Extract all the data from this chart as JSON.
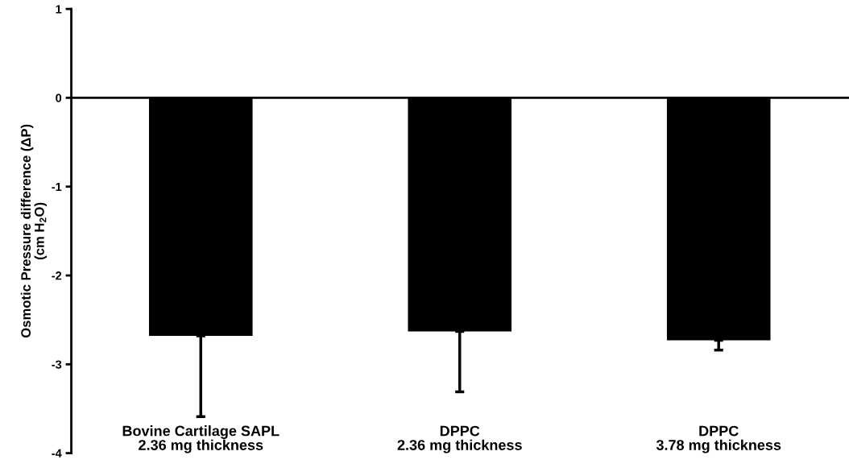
{
  "chart_data": {
    "type": "bar",
    "ylabel": "Osmotic Pressure difference (ΔP)\n(cm H$_{2}$O)",
    "categories": [
      "Bovine Cartilage SAPL\n2.36 mg thickness",
      "DPPC\n2.36 mg thickness",
      "DPPC\n3.78 mg thickness"
    ],
    "values": [
      -2.68,
      -2.63,
      -2.73
    ],
    "errors": [
      [
        -3.59,
        -2.68
      ],
      [
        -3.31,
        -2.63
      ],
      [
        -2.84,
        -2.73
      ]
    ],
    "color": "#000000",
    "ylim": [
      -4,
      1
    ],
    "yticks": [
      -4,
      -3,
      -2,
      -1,
      0,
      1
    ]
  }
}
